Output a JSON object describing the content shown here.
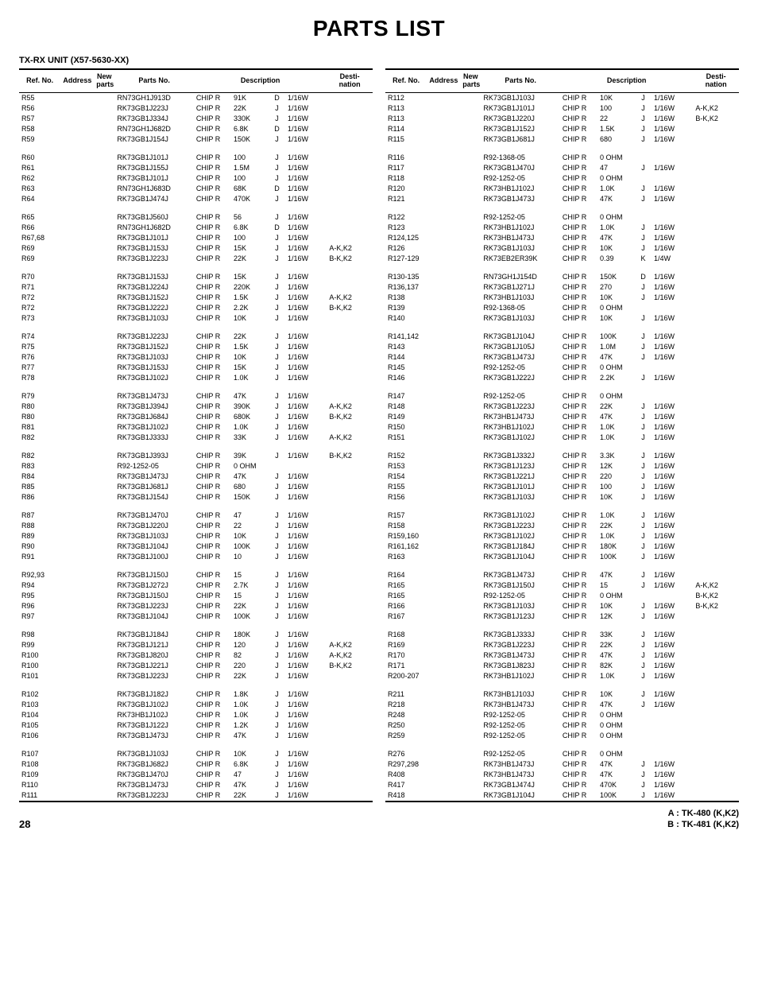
{
  "title": "PARTS LIST",
  "subtitle": "TX-RX UNIT (X57-5630-XX)",
  "columns": [
    "Ref. No.",
    "Address",
    "New parts",
    "Parts No.",
    "Description",
    "Desti-nation"
  ],
  "footer": {
    "page": "28",
    "right1": "A : TK-480 (K,K2)",
    "right2": "B : TK-481 (K,K2)"
  },
  "left": [
    [
      "R55",
      "",
      "",
      "RN73GH1J913D",
      "CHIP R",
      "91K",
      "D",
      "1/16W",
      ""
    ],
    [
      "R56",
      "",
      "",
      "RK73GB1J223J",
      "CHIP R",
      "22K",
      "J",
      "1/16W",
      ""
    ],
    [
      "R57",
      "",
      "",
      "RK73GB1J334J",
      "CHIP R",
      "330K",
      "J",
      "1/16W",
      ""
    ],
    [
      "R58",
      "",
      "",
      "RN73GH1J682D",
      "CHIP R",
      "6.8K",
      "D",
      "1/16W",
      ""
    ],
    [
      "R59",
      "",
      "",
      "RK73GB1J154J",
      "CHIP R",
      "150K",
      "J",
      "1/16W",
      ""
    ],
    null,
    [
      "R60",
      "",
      "",
      "RK73GB1J101J",
      "CHIP R",
      "100",
      "J",
      "1/16W",
      ""
    ],
    [
      "R61",
      "",
      "",
      "RK73GB1J155J",
      "CHIP R",
      "1.5M",
      "J",
      "1/16W",
      ""
    ],
    [
      "R62",
      "",
      "",
      "RK73GB1J101J",
      "CHIP R",
      "100",
      "J",
      "1/16W",
      ""
    ],
    [
      "R63",
      "",
      "",
      "RN73GH1J683D",
      "CHIP R",
      "68K",
      "D",
      "1/16W",
      ""
    ],
    [
      "R64",
      "",
      "",
      "RK73GB1J474J",
      "CHIP R",
      "470K",
      "J",
      "1/16W",
      ""
    ],
    null,
    [
      "R65",
      "",
      "",
      "RK73GB1J560J",
      "CHIP R",
      "56",
      "J",
      "1/16W",
      ""
    ],
    [
      "R66",
      "",
      "",
      "RN73GH1J682D",
      "CHIP R",
      "6.8K",
      "D",
      "1/16W",
      ""
    ],
    [
      "R67,68",
      "",
      "",
      "RK73GB1J101J",
      "CHIP R",
      "100",
      "J",
      "1/16W",
      ""
    ],
    [
      "R69",
      "",
      "",
      "RK73GB1J153J",
      "CHIP R",
      "15K",
      "J",
      "1/16W",
      "A-K,K2"
    ],
    [
      "R69",
      "",
      "",
      "RK73GB1J223J",
      "CHIP R",
      "22K",
      "J",
      "1/16W",
      "B-K,K2"
    ],
    null,
    [
      "R70",
      "",
      "",
      "RK73GB1J153J",
      "CHIP R",
      "15K",
      "J",
      "1/16W",
      ""
    ],
    [
      "R71",
      "",
      "",
      "RK73GB1J224J",
      "CHIP R",
      "220K",
      "J",
      "1/16W",
      ""
    ],
    [
      "R72",
      "",
      "",
      "RK73GB1J152J",
      "CHIP R",
      "1.5K",
      "J",
      "1/16W",
      "A-K,K2"
    ],
    [
      "R72",
      "",
      "",
      "RK73GB1J222J",
      "CHIP R",
      "2.2K",
      "J",
      "1/16W",
      "B-K,K2"
    ],
    [
      "R73",
      "",
      "",
      "RK73GB1J103J",
      "CHIP R",
      "10K",
      "J",
      "1/16W",
      ""
    ],
    null,
    [
      "R74",
      "",
      "",
      "RK73GB1J223J",
      "CHIP R",
      "22K",
      "J",
      "1/16W",
      ""
    ],
    [
      "R75",
      "",
      "",
      "RK73GB1J152J",
      "CHIP R",
      "1.5K",
      "J",
      "1/16W",
      ""
    ],
    [
      "R76",
      "",
      "",
      "RK73GB1J103J",
      "CHIP R",
      "10K",
      "J",
      "1/16W",
      ""
    ],
    [
      "R77",
      "",
      "",
      "RK73GB1J153J",
      "CHIP R",
      "15K",
      "J",
      "1/16W",
      ""
    ],
    [
      "R78",
      "",
      "",
      "RK73GB1J102J",
      "CHIP R",
      "1.0K",
      "J",
      "1/16W",
      ""
    ],
    null,
    [
      "R79",
      "",
      "",
      "RK73GB1J473J",
      "CHIP R",
      "47K",
      "J",
      "1/16W",
      ""
    ],
    [
      "R80",
      "",
      "",
      "RK73GB1J394J",
      "CHIP R",
      "390K",
      "J",
      "1/16W",
      "A-K,K2"
    ],
    [
      "R80",
      "",
      "",
      "RK73GB1J684J",
      "CHIP R",
      "680K",
      "J",
      "1/16W",
      "B-K,K2"
    ],
    [
      "R81",
      "",
      "",
      "RK73GB1J102J",
      "CHIP R",
      "1.0K",
      "J",
      "1/16W",
      ""
    ],
    [
      "R82",
      "",
      "",
      "RK73GB1J333J",
      "CHIP R",
      "33K",
      "J",
      "1/16W",
      "A-K,K2"
    ],
    null,
    [
      "R82",
      "",
      "",
      "RK73GB1J393J",
      "CHIP R",
      "39K",
      "J",
      "1/16W",
      "B-K,K2"
    ],
    [
      "R83",
      "",
      "",
      "R92-1252-05",
      "CHIP R",
      "0 OHM",
      "",
      "",
      ""
    ],
    [
      "R84",
      "",
      "",
      "RK73GB1J473J",
      "CHIP R",
      "47K",
      "J",
      "1/16W",
      ""
    ],
    [
      "R85",
      "",
      "",
      "RK73GB1J681J",
      "CHIP R",
      "680",
      "J",
      "1/16W",
      ""
    ],
    [
      "R86",
      "",
      "",
      "RK73GB1J154J",
      "CHIP R",
      "150K",
      "J",
      "1/16W",
      ""
    ],
    null,
    [
      "R87",
      "",
      "",
      "RK73GB1J470J",
      "CHIP R",
      "47",
      "J",
      "1/16W",
      ""
    ],
    [
      "R88",
      "",
      "",
      "RK73GB1J220J",
      "CHIP R",
      "22",
      "J",
      "1/16W",
      ""
    ],
    [
      "R89",
      "",
      "",
      "RK73GB1J103J",
      "CHIP R",
      "10K",
      "J",
      "1/16W",
      ""
    ],
    [
      "R90",
      "",
      "",
      "RK73GB1J104J",
      "CHIP R",
      "100K",
      "J",
      "1/16W",
      ""
    ],
    [
      "R91",
      "",
      "",
      "RK73GB1J100J",
      "CHIP R",
      "10",
      "J",
      "1/16W",
      ""
    ],
    null,
    [
      "R92,93",
      "",
      "",
      "RK73GB1J150J",
      "CHIP R",
      "15",
      "J",
      "1/16W",
      ""
    ],
    [
      "R94",
      "",
      "",
      "RK73GB1J272J",
      "CHIP R",
      "2.7K",
      "J",
      "1/16W",
      ""
    ],
    [
      "R95",
      "",
      "",
      "RK73GB1J150J",
      "CHIP R",
      "15",
      "J",
      "1/16W",
      ""
    ],
    [
      "R96",
      "",
      "",
      "RK73GB1J223J",
      "CHIP R",
      "22K",
      "J",
      "1/16W",
      ""
    ],
    [
      "R97",
      "",
      "",
      "RK73GB1J104J",
      "CHIP R",
      "100K",
      "J",
      "1/16W",
      ""
    ],
    null,
    [
      "R98",
      "",
      "",
      "RK73GB1J184J",
      "CHIP R",
      "180K",
      "J",
      "1/16W",
      ""
    ],
    [
      "R99",
      "",
      "",
      "RK73GB1J121J",
      "CHIP R",
      "120",
      "J",
      "1/16W",
      "A-K,K2"
    ],
    [
      "R100",
      "",
      "",
      "RK73GB1J820J",
      "CHIP R",
      "82",
      "J",
      "1/16W",
      "A-K,K2"
    ],
    [
      "R100",
      "",
      "",
      "RK73GB1J221J",
      "CHIP R",
      "220",
      "J",
      "1/16W",
      "B-K,K2"
    ],
    [
      "R101",
      "",
      "",
      "RK73GB1J223J",
      "CHIP R",
      "22K",
      "J",
      "1/16W",
      ""
    ],
    null,
    [
      "R102",
      "",
      "",
      "RK73GB1J182J",
      "CHIP R",
      "1.8K",
      "J",
      "1/16W",
      ""
    ],
    [
      "R103",
      "",
      "",
      "RK73GB1J102J",
      "CHIP R",
      "1.0K",
      "J",
      "1/16W",
      ""
    ],
    [
      "R104",
      "",
      "",
      "RK73HB1J102J",
      "CHIP R",
      "1.0K",
      "J",
      "1/16W",
      ""
    ],
    [
      "R105",
      "",
      "",
      "RK73GB1J122J",
      "CHIP R",
      "1.2K",
      "J",
      "1/16W",
      ""
    ],
    [
      "R106",
      "",
      "",
      "RK73GB1J473J",
      "CHIP R",
      "47K",
      "J",
      "1/16W",
      ""
    ],
    null,
    [
      "R107",
      "",
      "",
      "RK73GB1J103J",
      "CHIP R",
      "10K",
      "J",
      "1/16W",
      ""
    ],
    [
      "R108",
      "",
      "",
      "RK73GB1J682J",
      "CHIP R",
      "6.8K",
      "J",
      "1/16W",
      ""
    ],
    [
      "R109",
      "",
      "",
      "RK73GB1J470J",
      "CHIP R",
      "47",
      "J",
      "1/16W",
      ""
    ],
    [
      "R110",
      "",
      "",
      "RK73GB1J473J",
      "CHIP R",
      "47K",
      "J",
      "1/16W",
      ""
    ],
    [
      "R111",
      "",
      "",
      "RK73GB1J223J",
      "CHIP R",
      "22K",
      "J",
      "1/16W",
      ""
    ]
  ],
  "right": [
    [
      "R112",
      "",
      "",
      "RK73GB1J103J",
      "CHIP R",
      "10K",
      "J",
      "1/16W",
      ""
    ],
    [
      "R113",
      "",
      "",
      "RK73GB1J101J",
      "CHIP R",
      "100",
      "J",
      "1/16W",
      "A-K,K2"
    ],
    [
      "R113",
      "",
      "",
      "RK73GB1J220J",
      "CHIP R",
      "22",
      "J",
      "1/16W",
      "B-K,K2"
    ],
    [
      "R114",
      "",
      "",
      "RK73GB1J152J",
      "CHIP R",
      "1.5K",
      "J",
      "1/16W",
      ""
    ],
    [
      "R115",
      "",
      "",
      "RK73GB1J681J",
      "CHIP R",
      "680",
      "J",
      "1/16W",
      ""
    ],
    null,
    [
      "R116",
      "",
      "",
      "R92-1368-05",
      "CHIP R",
      "0 OHM",
      "",
      "",
      ""
    ],
    [
      "R117",
      "",
      "",
      "RK73GB1J470J",
      "CHIP R",
      "47",
      "J",
      "1/16W",
      ""
    ],
    [
      "R118",
      "",
      "",
      "R92-1252-05",
      "CHIP R",
      "0 OHM",
      "",
      "",
      ""
    ],
    [
      "R120",
      "",
      "",
      "RK73HB1J102J",
      "CHIP R",
      "1.0K",
      "J",
      "1/16W",
      ""
    ],
    [
      "R121",
      "",
      "",
      "RK73GB1J473J",
      "CHIP R",
      "47K",
      "J",
      "1/16W",
      ""
    ],
    null,
    [
      "R122",
      "",
      "",
      "R92-1252-05",
      "CHIP R",
      "0 OHM",
      "",
      "",
      ""
    ],
    [
      "R123",
      "",
      "",
      "RK73HB1J102J",
      "CHIP R",
      "1.0K",
      "J",
      "1/16W",
      ""
    ],
    [
      "R124,125",
      "",
      "",
      "RK73HB1J473J",
      "CHIP R",
      "47K",
      "J",
      "1/16W",
      ""
    ],
    [
      "R126",
      "",
      "",
      "RK73GB1J103J",
      "CHIP R",
      "10K",
      "J",
      "1/16W",
      ""
    ],
    [
      "R127-129",
      "",
      "",
      "RK73EB2ER39K",
      "CHIP R",
      "0.39",
      "K",
      "1/4W",
      ""
    ],
    null,
    [
      "R130-135",
      "",
      "",
      "RN73GH1J154D",
      "CHIP R",
      "150K",
      "D",
      "1/16W",
      ""
    ],
    [
      "R136,137",
      "",
      "",
      "RK73GB1J271J",
      "CHIP R",
      "270",
      "J",
      "1/16W",
      ""
    ],
    [
      "R138",
      "",
      "",
      "RK73HB1J103J",
      "CHIP R",
      "10K",
      "J",
      "1/16W",
      ""
    ],
    [
      "R139",
      "",
      "",
      "R92-1368-05",
      "CHIP R",
      "0 OHM",
      "",
      "",
      ""
    ],
    [
      "R140",
      "",
      "",
      "RK73GB1J103J",
      "CHIP R",
      "10K",
      "J",
      "1/16W",
      ""
    ],
    null,
    [
      "R141,142",
      "",
      "",
      "RK73GB1J104J",
      "CHIP R",
      "100K",
      "J",
      "1/16W",
      ""
    ],
    [
      "R143",
      "",
      "",
      "RK73GB1J105J",
      "CHIP R",
      "1.0M",
      "J",
      "1/16W",
      ""
    ],
    [
      "R144",
      "",
      "",
      "RK73GB1J473J",
      "CHIP R",
      "47K",
      "J",
      "1/16W",
      ""
    ],
    [
      "R145",
      "",
      "",
      "R92-1252-05",
      "CHIP R",
      "0 OHM",
      "",
      "",
      ""
    ],
    [
      "R146",
      "",
      "",
      "RK73GB1J222J",
      "CHIP R",
      "2.2K",
      "J",
      "1/16W",
      ""
    ],
    null,
    [
      "R147",
      "",
      "",
      "R92-1252-05",
      "CHIP R",
      "0 OHM",
      "",
      "",
      ""
    ],
    [
      "R148",
      "",
      "",
      "RK73GB1J223J",
      "CHIP R",
      "22K",
      "J",
      "1/16W",
      ""
    ],
    [
      "R149",
      "",
      "",
      "RK73HB1J473J",
      "CHIP R",
      "47K",
      "J",
      "1/16W",
      ""
    ],
    [
      "R150",
      "",
      "",
      "RK73HB1J102J",
      "CHIP R",
      "1.0K",
      "J",
      "1/16W",
      ""
    ],
    [
      "R151",
      "",
      "",
      "RK73GB1J102J",
      "CHIP R",
      "1.0K",
      "J",
      "1/16W",
      ""
    ],
    null,
    [
      "R152",
      "",
      "",
      "RK73GB1J332J",
      "CHIP R",
      "3.3K",
      "J",
      "1/16W",
      ""
    ],
    [
      "R153",
      "",
      "",
      "RK73GB1J123J",
      "CHIP R",
      "12K",
      "J",
      "1/16W",
      ""
    ],
    [
      "R154",
      "",
      "",
      "RK73GB1J221J",
      "CHIP R",
      "220",
      "J",
      "1/16W",
      ""
    ],
    [
      "R155",
      "",
      "",
      "RK73GB1J101J",
      "CHIP R",
      "100",
      "J",
      "1/16W",
      ""
    ],
    [
      "R156",
      "",
      "",
      "RK73GB1J103J",
      "CHIP R",
      "10K",
      "J",
      "1/16W",
      ""
    ],
    null,
    [
      "R157",
      "",
      "",
      "RK73GB1J102J",
      "CHIP R",
      "1.0K",
      "J",
      "1/16W",
      ""
    ],
    [
      "R158",
      "",
      "",
      "RK73GB1J223J",
      "CHIP R",
      "22K",
      "J",
      "1/16W",
      ""
    ],
    [
      "R159,160",
      "",
      "",
      "RK73GB1J102J",
      "CHIP R",
      "1.0K",
      "J",
      "1/16W",
      ""
    ],
    [
      "R161,162",
      "",
      "",
      "RK73GB1J184J",
      "CHIP R",
      "180K",
      "J",
      "1/16W",
      ""
    ],
    [
      "R163",
      "",
      "",
      "RK73GB1J104J",
      "CHIP R",
      "100K",
      "J",
      "1/16W",
      ""
    ],
    null,
    [
      "R164",
      "",
      "",
      "RK73GB1J473J",
      "CHIP R",
      "47K",
      "J",
      "1/16W",
      ""
    ],
    [
      "R165",
      "",
      "",
      "RK73GB1J150J",
      "CHIP R",
      "15",
      "J",
      "1/16W",
      "A-K,K2"
    ],
    [
      "R165",
      "",
      "",
      "R92-1252-05",
      "CHIP R",
      "0 OHM",
      "",
      "",
      "B-K,K2"
    ],
    [
      "R166",
      "",
      "",
      "RK73GB1J103J",
      "CHIP R",
      "10K",
      "J",
      "1/16W",
      "B-K,K2"
    ],
    [
      "R167",
      "",
      "",
      "RK73GB1J123J",
      "CHIP R",
      "12K",
      "J",
      "1/16W",
      ""
    ],
    null,
    [
      "R168",
      "",
      "",
      "RK73GB1J333J",
      "CHIP R",
      "33K",
      "J",
      "1/16W",
      ""
    ],
    [
      "R169",
      "",
      "",
      "RK73GB1J223J",
      "CHIP R",
      "22K",
      "J",
      "1/16W",
      ""
    ],
    [
      "R170",
      "",
      "",
      "RK73GB1J473J",
      "CHIP R",
      "47K",
      "J",
      "1/16W",
      ""
    ],
    [
      "R171",
      "",
      "",
      "RK73GB1J823J",
      "CHIP R",
      "82K",
      "J",
      "1/16W",
      ""
    ],
    [
      "R200-207",
      "",
      "",
      "RK73HB1J102J",
      "CHIP R",
      "1.0K",
      "J",
      "1/16W",
      ""
    ],
    null,
    [
      "R211",
      "",
      "",
      "RK73HB1J103J",
      "CHIP R",
      "10K",
      "J",
      "1/16W",
      ""
    ],
    [
      "R218",
      "",
      "",
      "RK73HB1J473J",
      "CHIP R",
      "47K",
      "J",
      "1/16W",
      ""
    ],
    [
      "R248",
      "",
      "",
      "R92-1252-05",
      "CHIP R",
      "0 OHM",
      "",
      "",
      ""
    ],
    [
      "R250",
      "",
      "",
      "R92-1252-05",
      "CHIP R",
      "0 OHM",
      "",
      "",
      ""
    ],
    [
      "R259",
      "",
      "",
      "R92-1252-05",
      "CHIP R",
      "0 OHM",
      "",
      "",
      ""
    ],
    null,
    [
      "R276",
      "",
      "",
      "R92-1252-05",
      "CHIP R",
      "0 OHM",
      "",
      "",
      ""
    ],
    [
      "R297,298",
      "",
      "",
      "RK73HB1J473J",
      "CHIP R",
      "47K",
      "J",
      "1/16W",
      ""
    ],
    [
      "R408",
      "",
      "",
      "RK73HB1J473J",
      "CHIP R",
      "47K",
      "J",
      "1/16W",
      ""
    ],
    [
      "R417",
      "",
      "",
      "RK73GB1J474J",
      "CHIP R",
      "470K",
      "J",
      "1/16W",
      ""
    ],
    [
      "R418",
      "",
      "",
      "RK73GB1J104J",
      "CHIP R",
      "100K",
      "J",
      "1/16W",
      ""
    ]
  ]
}
